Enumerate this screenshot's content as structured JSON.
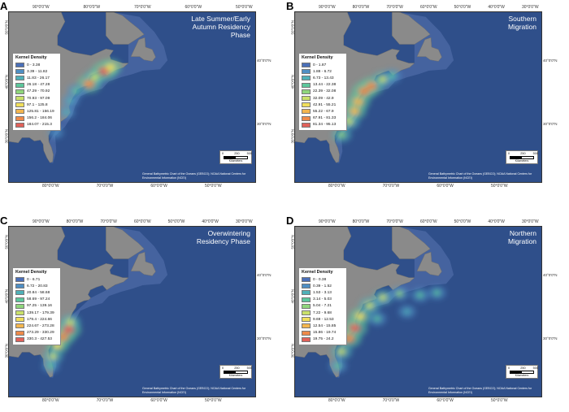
{
  "colors": {
    "ocean": "#2f4f8a",
    "land": "#8a8a8a",
    "shelf": "#4d6aa5"
  },
  "panels": [
    {
      "letter": "A",
      "title_lines": [
        "Late Summer/Early",
        "Autumn Residency",
        "Phase"
      ],
      "lon_labels_top": [
        "90°0'0\"W",
        "80°0'0\"W",
        "70°0'0\"W",
        "60°0'0\"W",
        "50°0'0\"W"
      ],
      "lon_labels_bottom": [
        "80°0'0\"W",
        "70°0'0\"W",
        "60°0'0\"W",
        "50°0'0\"W"
      ],
      "lat_labels_left": [
        "50°0'0\"N",
        "40°0'0\"N",
        "30°0'0\"N"
      ],
      "lat_labels_right": [
        "40°0'0\"N",
        "30°0'0\"N"
      ],
      "legend": {
        "title": "Kernel Density",
        "items": [
          {
            "label": "0 - 3.38",
            "color": "#4a6fb8"
          },
          {
            "label": "3.39 - 11.82",
            "color": "#4f8fc4"
          },
          {
            "label": "11.83 - 26.17",
            "color": "#4fb0b8"
          },
          {
            "label": "26.18 - 47.28",
            "color": "#5cc79c"
          },
          {
            "label": "47.29 - 70.92",
            "color": "#8fd67c"
          },
          {
            "label": "70.93 - 97.09",
            "color": "#c9e06a"
          },
          {
            "label": "97.1 - 125.8",
            "color": "#f0de5c"
          },
          {
            "label": "125.81 - 156.19",
            "color": "#f3b64f"
          },
          {
            "label": "156.2 - 184.06",
            "color": "#ee8a4a"
          },
          {
            "label": "184.07 - 215.3",
            "color": "#e0615a"
          }
        ]
      },
      "scale": {
        "nums": [
          "0",
          "250",
          "500"
        ],
        "unit": "Kilometers"
      },
      "credit": "General Bathymetric Chart of the Oceans (GEBCO); NOAA National Centers for Environmental Information (NCEI)",
      "density": [
        {
          "lon": -70.5,
          "lat": 41.8,
          "intensity": 0.85
        },
        {
          "lon": -69.0,
          "lat": 43.2,
          "intensity": 0.6
        },
        {
          "lon": -66.5,
          "lat": 44.5,
          "intensity": 0.95
        },
        {
          "lon": -64.8,
          "lat": 45.3,
          "intensity": 0.7
        },
        {
          "lon": -74.0,
          "lat": 40.3,
          "intensity": 0.35
        },
        {
          "lon": -75.5,
          "lat": 38.2,
          "intensity": 0.25
        },
        {
          "lon": -76.5,
          "lat": 35.8,
          "intensity": 0.2
        },
        {
          "lon": -79.5,
          "lat": 31.5,
          "intensity": 0.15
        }
      ]
    },
    {
      "letter": "B",
      "title_lines": [
        "Southern",
        "Migration"
      ],
      "lon_labels_top": [
        "90°0'0\"W",
        "80°0'0\"W",
        "70°0'0\"W",
        "60°0'0\"W",
        "50°0'0\"W",
        "40°0'0\"W",
        "30°0'0\"W"
      ],
      "lon_labels_bottom": [
        "80°0'0\"W",
        "70°0'0\"W",
        "60°0'0\"W",
        "50°0'0\"W"
      ],
      "lat_labels_left": [
        "50°0'0\"N",
        "40°0'0\"N",
        "30°0'0\"N"
      ],
      "lat_labels_right": [
        "40°0'0\"N",
        "30°0'0\"N"
      ],
      "legend": {
        "title": "Kernel Density",
        "items": [
          {
            "label": "0 - 1.87",
            "color": "#4a6fb8"
          },
          {
            "label": "1.88 - 6.72",
            "color": "#4f8fc4"
          },
          {
            "label": "6.73 - 13.43",
            "color": "#4fb0b8"
          },
          {
            "label": "13.44 - 22.38",
            "color": "#5cc79c"
          },
          {
            "label": "22.39 - 32.08",
            "color": "#8fd67c"
          },
          {
            "label": "32.09 - 42.9",
            "color": "#c9e06a"
          },
          {
            "label": "42.91 - 55.21",
            "color": "#f0de5c"
          },
          {
            "label": "55.22 - 67.9",
            "color": "#f3b64f"
          },
          {
            "label": "67.91 - 81.33",
            "color": "#ee8a4a"
          },
          {
            "label": "81.34 - 95.13",
            "color": "#e0615a"
          }
        ]
      },
      "scale": {
        "nums": [
          "0",
          "250",
          "500"
        ],
        "unit": "Kilometers"
      },
      "credit": "General Bathymetric Chart of the Oceans (GEBCO); NOAA National Centers for Environmental Information (NCEI)",
      "density": [
        {
          "lon": -71.5,
          "lat": 41.3,
          "intensity": 0.85
        },
        {
          "lon": -73.5,
          "lat": 40.2,
          "intensity": 0.9
        },
        {
          "lon": -68.5,
          "lat": 42.8,
          "intensity": 0.55
        },
        {
          "lon": -75.0,
          "lat": 38.0,
          "intensity": 0.8
        },
        {
          "lon": -76.0,
          "lat": 36.0,
          "intensity": 0.75
        },
        {
          "lon": -77.5,
          "lat": 33.8,
          "intensity": 0.6
        },
        {
          "lon": -79.5,
          "lat": 31.0,
          "intensity": 0.45
        },
        {
          "lon": -66.0,
          "lat": 43.5,
          "intensity": 0.35
        }
      ]
    },
    {
      "letter": "C",
      "title_lines": [
        "Overwintering",
        "Residency Phase"
      ],
      "lon_labels_top": [
        "90°0'0\"W",
        "80°0'0\"W",
        "70°0'0\"W",
        "60°0'0\"W",
        "50°0'0\"W",
        "40°0'0\"W",
        "30°0'0\"W"
      ],
      "lon_labels_bottom": [
        "80°0'0\"W",
        "70°0'0\"W",
        "60°0'0\"W",
        "50°0'0\"W"
      ],
      "lat_labels_left": [
        "50°0'0\"N",
        "40°0'0\"N",
        "30°0'0\"N"
      ],
      "lat_labels_right": [
        "40°0'0\"N",
        "30°0'0\"N"
      ],
      "legend": {
        "title": "Kernel Density",
        "items": [
          {
            "label": "0 - 6.71",
            "color": "#4a6fb8"
          },
          {
            "label": "6.72 - 20.83",
            "color": "#4f8fc4"
          },
          {
            "label": "20.84 - 58.68",
            "color": "#4fb0b8"
          },
          {
            "label": "58.69 - 97.24",
            "color": "#5cc79c"
          },
          {
            "label": "97.25 - 139.16",
            "color": "#8fd67c"
          },
          {
            "label": "139.17 - 179.39",
            "color": "#c9e06a"
          },
          {
            "label": "179.4 - 224.66",
            "color": "#f0de5c"
          },
          {
            "label": "224.67 - 273.28",
            "color": "#f3b64f"
          },
          {
            "label": "273.29 - 330.29",
            "color": "#ee8a4a"
          },
          {
            "label": "330.3 - 427.53",
            "color": "#e0615a"
          }
        ]
      },
      "scale": {
        "nums": [
          "0",
          "250",
          "500"
        ],
        "unit": "Kilometers"
      },
      "credit": "General Bathymetric Chart of the Oceans (GEBCO); NOAA National Centers for Environmental Information (NCEI)",
      "density": [
        {
          "lon": -76.0,
          "lat": 35.2,
          "intensity": 0.95
        },
        {
          "lon": -77.5,
          "lat": 33.6,
          "intensity": 0.85
        },
        {
          "lon": -79.0,
          "lat": 31.8,
          "intensity": 0.7
        },
        {
          "lon": -80.2,
          "lat": 29.5,
          "intensity": 0.5
        },
        {
          "lon": -75.5,
          "lat": 36.8,
          "intensity": 0.5
        },
        {
          "lon": -80.8,
          "lat": 27.5,
          "intensity": 0.3
        }
      ]
    },
    {
      "letter": "D",
      "title_lines": [
        "Northern",
        "Migration"
      ],
      "lon_labels_top": [
        "90°0'0\"W",
        "80°0'0\"W",
        "70°0'0\"W",
        "60°0'0\"W",
        "50°0'0\"W",
        "40°0'0\"W",
        "30°0'0\"W"
      ],
      "lon_labels_bottom": [
        "80°0'0\"W",
        "70°0'0\"W",
        "60°0'0\"W",
        "50°0'0\"W"
      ],
      "lat_labels_left": [
        "50°0'0\"N",
        "40°0'0\"N",
        "30°0'0\"N"
      ],
      "lat_labels_right": [
        "40°0'0\"N",
        "30°0'0\"N"
      ],
      "legend": {
        "title": "Kernel Density",
        "items": [
          {
            "label": "0 - 0.38",
            "color": "#4a6fb8"
          },
          {
            "label": "0.39 - 1.52",
            "color": "#4f8fc4"
          },
          {
            "label": "1.53 - 3.13",
            "color": "#4fb0b8"
          },
          {
            "label": "3.14 - 5.03",
            "color": "#5cc79c"
          },
          {
            "label": "5.04 - 7.21",
            "color": "#8fd67c"
          },
          {
            "label": "7.22 - 9.68",
            "color": "#c9e06a"
          },
          {
            "label": "9.69 - 12.53",
            "color": "#f0de5c"
          },
          {
            "label": "12.54 - 15.85",
            "color": "#f3b64f"
          },
          {
            "label": "15.86 - 19.74",
            "color": "#ee8a4a"
          },
          {
            "label": "19.75 - 24.2",
            "color": "#e0615a"
          }
        ]
      },
      "scale": {
        "nums": [
          "0",
          "250",
          "500"
        ],
        "unit": "Kilometers"
      },
      "credit": "General Bathymetric Chart of the Oceans (GEBCO); NOAA National Centers for Environmental Information (NCEI)",
      "density": [
        {
          "lon": -76.0,
          "lat": 35.5,
          "intensity": 0.95
        },
        {
          "lon": -77.5,
          "lat": 33.3,
          "intensity": 0.9
        },
        {
          "lon": -74.5,
          "lat": 38.0,
          "intensity": 0.7
        },
        {
          "lon": -72.0,
          "lat": 40.3,
          "intensity": 0.6
        },
        {
          "lon": -68.5,
          "lat": 42.0,
          "intensity": 0.5
        },
        {
          "lon": -64.0,
          "lat": 42.8,
          "intensity": 0.4
        },
        {
          "lon": -58.5,
          "lat": 42.5,
          "intensity": 0.35
        },
        {
          "lon": -54.0,
          "lat": 43.0,
          "intensity": 0.3
        },
        {
          "lon": -79.5,
          "lat": 30.5,
          "intensity": 0.55
        },
        {
          "lon": -80.5,
          "lat": 27.5,
          "intensity": 0.35
        },
        {
          "lon": -70.0,
          "lat": 37.5,
          "intensity": 0.35
        },
        {
          "lon": -62.0,
          "lat": 39.0,
          "intensity": 0.25
        }
      ]
    }
  ]
}
